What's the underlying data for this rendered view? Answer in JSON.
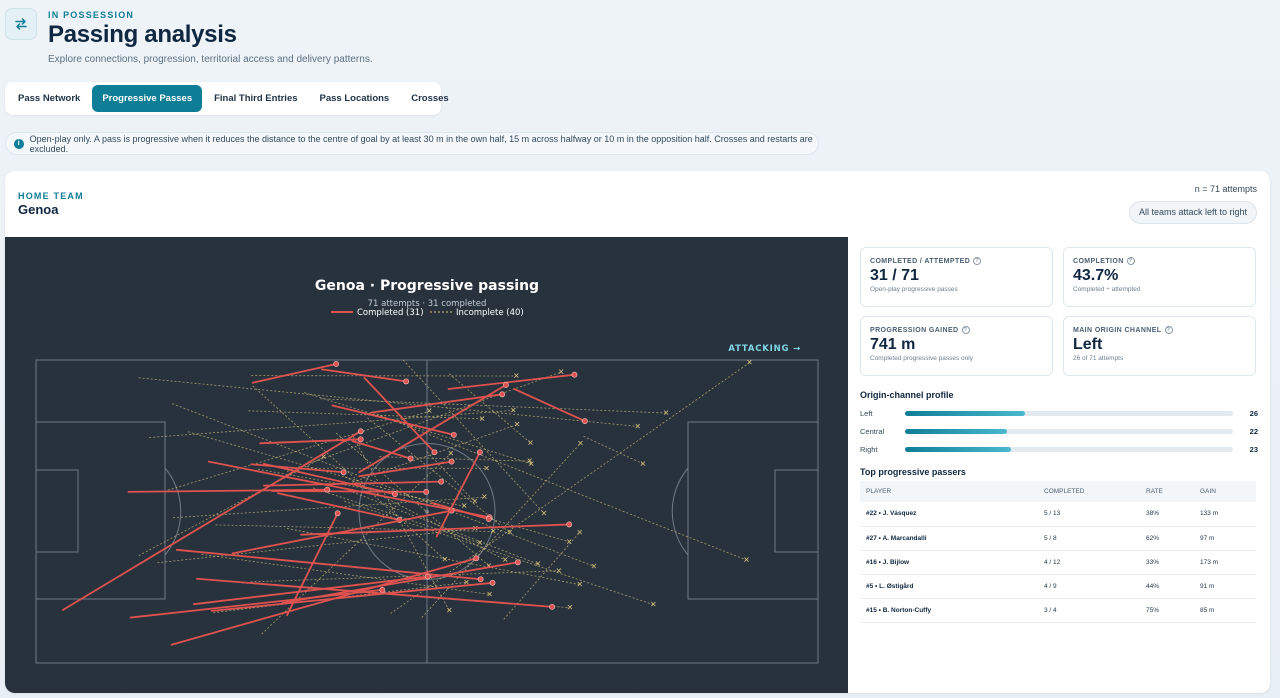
{
  "header": {
    "eyebrow": "IN POSSESSION",
    "title": "Passing analysis",
    "subtitle": "Explore connections, progression, territorial access and delivery patterns.",
    "swap_icon": "swap-arrows-icon"
  },
  "tabs": [
    {
      "label": "Pass Network",
      "active": false
    },
    {
      "label": "Progressive Passes",
      "active": true
    },
    {
      "label": "Final Third Entries",
      "active": false
    },
    {
      "label": "Pass Locations",
      "active": false
    },
    {
      "label": "Crosses",
      "active": false
    }
  ],
  "notice": {
    "icon": "info-icon",
    "text": "Open-play only. A pass is progressive when it reduces the distance to the centre of goal by at least 30 m in the own half, 15 m across halfway or 10 m in the opposition half. Crosses and restarts are excluded."
  },
  "team_card": {
    "eyebrow": "HOME TEAM",
    "team": "Genoa",
    "n_label": "n = 71 attempts",
    "attack_chip": "All teams attack left to right"
  },
  "chart": {
    "title": "Genoa · Progressive passing",
    "subtitle": "71 attempts · 31 completed",
    "legend_completed": "Completed (31)",
    "legend_incomplete": "Incomplete (40)",
    "attacking_label": "ATTACKING →",
    "completed_color": "#e0524f",
    "incomplete_color": "#d8c07a",
    "pitch_color": "#27323d",
    "line_color": "#6f7a86"
  },
  "kpis": {
    "completed": {
      "label": "COMPLETED / ATTEMPTED",
      "value": "31 / 71",
      "sub": "Open-play progressive passes"
    },
    "completion": {
      "label": "COMPLETION",
      "value": "43.7%",
      "sub": "Completed ÷ attempted"
    },
    "progression": {
      "label": "PROGRESSION GAINED",
      "value": "741 m",
      "sub": "Completed progressive passes only"
    },
    "channel": {
      "label": "MAIN ORIGIN CHANNEL",
      "value": "Left",
      "sub": "26 of 71 attempts"
    }
  },
  "origin_profile": {
    "title": "Origin-channel profile",
    "max": 71,
    "rows": [
      {
        "label": "Left",
        "value": "26",
        "frac": 0.366
      },
      {
        "label": "Central",
        "value": "22",
        "frac": 0.31
      },
      {
        "label": "Right",
        "value": "23",
        "frac": 0.324
      }
    ]
  },
  "passers": {
    "title": "Top progressive passers",
    "headers": [
      "PLAYER",
      "COMPLETED",
      "RATE",
      "GAIN"
    ],
    "rows": [
      {
        "player": "#22 • J. Vásquez",
        "completed": "5 / 13",
        "rate": "38%",
        "gain": "133 m"
      },
      {
        "player": "#27 • A. Marcandalli",
        "completed": "5 / 8",
        "rate": "62%",
        "gain": "97 m"
      },
      {
        "player": "#16 • J. Bijlow",
        "completed": "4 / 12",
        "rate": "33%",
        "gain": "173 m"
      },
      {
        "player": "#5 • L. Østigård",
        "completed": "4 / 9",
        "rate": "44%",
        "gain": "91 m"
      },
      {
        "player": "#15 • B. Norton-Cuffy",
        "completed": "3 / 4",
        "rate": "75%",
        "gain": "85 m"
      }
    ]
  },
  "passes": {
    "pitch_length_m": 105,
    "pitch_width_m": 68,
    "completed": [
      [
        3.6,
        56.1,
        43.6,
        16.0
      ],
      [
        33.7,
        57.3,
        40.5,
        34.4
      ],
      [
        23.2,
        22.8,
        60.9,
        35.3
      ],
      [
        29.1,
        5.1,
        40.3,
        0.9
      ],
      [
        31.7,
        29.4,
        52.4,
        29.6
      ],
      [
        38.4,
        2.1,
        49.7,
        4.8
      ],
      [
        30.6,
        23.3,
        48.2,
        30.1
      ],
      [
        43.4,
        26.1,
        55.8,
        22.8
      ],
      [
        18.2,
        63.9,
        59.1,
        44.5
      ],
      [
        12.7,
        57.8,
        46.5,
        51.6
      ],
      [
        32.5,
        29.9,
        48.8,
        35.9
      ],
      [
        45.0,
        11.8,
        62.6,
        7.7
      ],
      [
        21.6,
        49.1,
        69.3,
        55.4
      ],
      [
        44.1,
        4.0,
        53.5,
        20.7
      ],
      [
        30.1,
        18.7,
        43.6,
        17.8
      ],
      [
        28.9,
        23.4,
        41.3,
        25.2
      ],
      [
        39.8,
        10.2,
        56.1,
        16.8
      ],
      [
        30.6,
        28.2,
        54.4,
        27.3
      ],
      [
        53.2,
        32.1,
        60.8,
        35.7
      ],
      [
        26.4,
        43.4,
        55.8,
        33.8
      ],
      [
        35.6,
        39.2,
        71.6,
        36.9
      ],
      [
        33.1,
        54.5,
        64.7,
        45.4
      ],
      [
        55.4,
        6.5,
        72.3,
        3.3
      ],
      [
        42.5,
        18.2,
        50.3,
        22.1
      ],
      [
        43.4,
        25.2,
        63.1,
        5.6
      ],
      [
        18.9,
        42.6,
        59.7,
        49.2
      ],
      [
        53.8,
        39.6,
        59.6,
        20.7
      ],
      [
        64.2,
        6.5,
        73.7,
        13.7
      ],
      [
        21.2,
        54.8,
        52.6,
        48.6
      ],
      [
        23.6,
        56.3,
        61.3,
        50.0
      ],
      [
        12.4,
        29.6,
        39.1,
        29.1
      ]
    ],
    "incomplete": [
      [
        47.6,
        56.9,
        95.8,
        0.6
      ],
      [
        42.5,
        27.4,
        64.6,
        14.5
      ],
      [
        29.1,
        5.8,
        54.9,
        44.8
      ],
      [
        28.8,
        49.8,
        70.2,
        47.3
      ],
      [
        42.6,
        17.3,
        55.5,
        56.2
      ],
      [
        52.5,
        20.6,
        58.9,
        31.8
      ],
      [
        46.1,
        21.7,
        66.3,
        22.7
      ],
      [
        62.8,
        58.2,
        73.0,
        38.7
      ],
      [
        28.5,
        11.4,
        59.9,
        13.2
      ],
      [
        13.8,
        4.0,
        80.8,
        14.9
      ],
      [
        36.0,
        7.3,
        66.5,
        23.3
      ],
      [
        20.4,
        16.1,
        71.6,
        40.8
      ],
      [
        17.7,
        29.2,
        52.8,
        11.5
      ],
      [
        44.5,
        13.0,
        63.6,
        38.7
      ],
      [
        15.2,
        17.4,
        64.1,
        11.3
      ],
      [
        27.7,
        50.0,
        71.7,
        55.6
      ],
      [
        42.0,
        29.3,
        67.4,
        45.8
      ],
      [
        41.5,
        26.2,
        63.0,
        44.9
      ],
      [
        49.3,
        0.0,
        68.2,
        34.4
      ],
      [
        55.5,
        3.1,
        66.4,
        18.6
      ],
      [
        40.3,
        16.4,
        60.8,
        46.2
      ],
      [
        29.8,
        24.5,
        57.5,
        32.8
      ],
      [
        41.4,
        31.7,
        82.9,
        54.9
      ],
      [
        33.7,
        37.8,
        73.0,
        50.4
      ],
      [
        45.3,
        11.8,
        95.4,
        44.9
      ],
      [
        23.8,
        56.7,
        57.8,
        49.9
      ],
      [
        33.7,
        25.0,
        70.5,
        2.7
      ],
      [
        28.9,
        3.5,
        64.5,
        3.6
      ],
      [
        18.4,
        35.4,
        60.2,
        30.8
      ],
      [
        13.8,
        43.9,
        38.6,
        21.8
      ],
      [
        37.2,
        28.7,
        59.6,
        41.1
      ],
      [
        30.3,
        61.5,
        55.7,
        21.0
      ],
      [
        16.3,
        45.5,
        59.0,
        37.8
      ],
      [
        22.2,
        43.6,
        60.9,
        52.6
      ],
      [
        51.8,
        57.8,
        73.1,
        18.7
      ],
      [
        73.5,
        17.1,
        81.5,
        23.3
      ],
      [
        18.3,
        9.8,
        74.9,
        46.3
      ],
      [
        33.7,
        24.3,
        60.5,
        24.3
      ],
      [
        24.1,
        37.0,
        61.4,
        38.5
      ],
      [
        38.2,
        8.7,
        84.6,
        11.9
      ]
    ]
  }
}
